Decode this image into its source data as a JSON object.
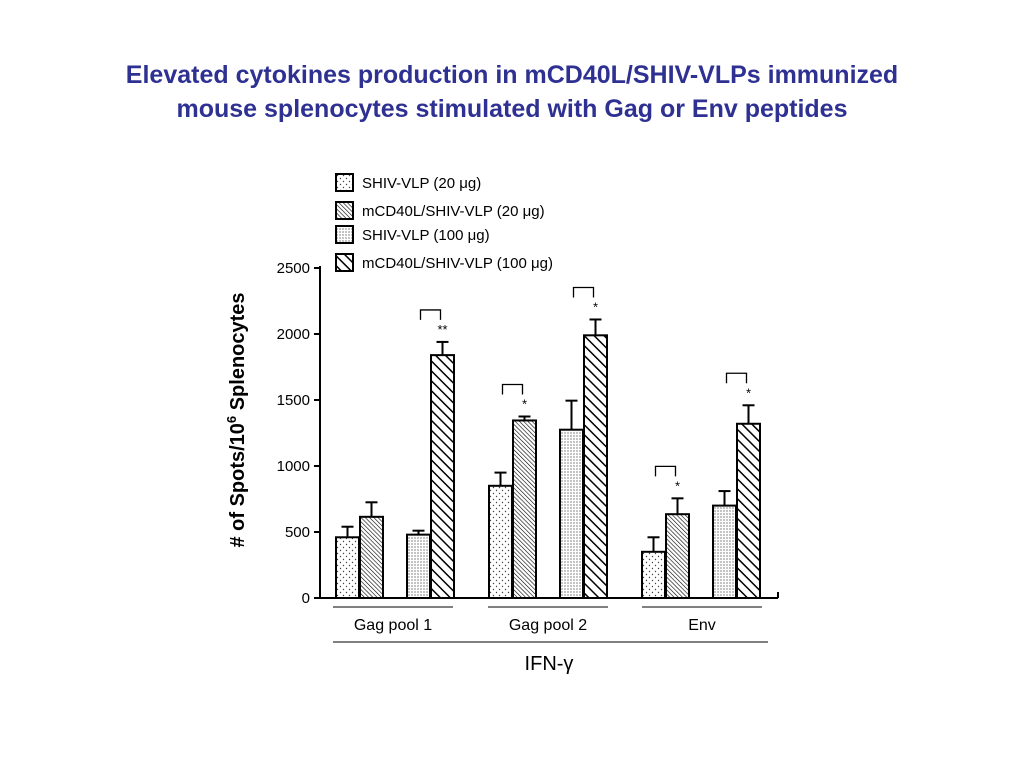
{
  "slide": {
    "title_line1": "Elevated cytokines production in mCD40L/SHIV-VLPs immunized",
    "title_line2": "mouse splenocytes stimulated with Gag or Env peptides"
  },
  "chart_data": {
    "type": "bar",
    "ylabel_main": "# of Spots/10",
    "ylabel_sup": "6",
    "ylabel_tail": " Splenocytes",
    "xlabel": "IFN-γ",
    "ylim": [
      0,
      2500
    ],
    "yticks": [
      "0",
      "500",
      "1000",
      "1500",
      "2000",
      "2500"
    ],
    "categories": [
      "Gag pool 1",
      "Gag pool 2",
      "Env"
    ],
    "series": [
      {
        "name": "SHIV-VLP (20 μg)",
        "pattern": "dots",
        "values": [
          460,
          850,
          350
        ],
        "errors": [
          80,
          100,
          110
        ]
      },
      {
        "name": "mCD40L/SHIV-VLP (20 μg)",
        "pattern": "hatch-fine",
        "values": [
          615,
          1345,
          635
        ],
        "errors": [
          110,
          30,
          120
        ]
      },
      {
        "name": "SHIV-VLP (100 μg)",
        "pattern": "dots-dense",
        "values": [
          480,
          1275,
          700
        ],
        "errors": [
          30,
          220,
          110
        ]
      },
      {
        "name": "mCD40L/SHIV-VLP (100 μg)",
        "pattern": "hatch-wide",
        "values": [
          1840,
          1990,
          1320
        ],
        "errors": [
          100,
          120,
          140
        ]
      }
    ],
    "significance": [
      {
        "category": 0,
        "pair": "100",
        "label": "**"
      },
      {
        "category": 1,
        "pair": "20",
        "label": "*"
      },
      {
        "category": 1,
        "pair": "100",
        "label": "*"
      },
      {
        "category": 2,
        "pair": "20",
        "label": "*"
      },
      {
        "category": 2,
        "pair": "100",
        "label": "*"
      }
    ],
    "legend_position": "top",
    "grid": false,
    "colors": {
      "bar_stroke": "#000000",
      "title": "#2e3192"
    }
  }
}
